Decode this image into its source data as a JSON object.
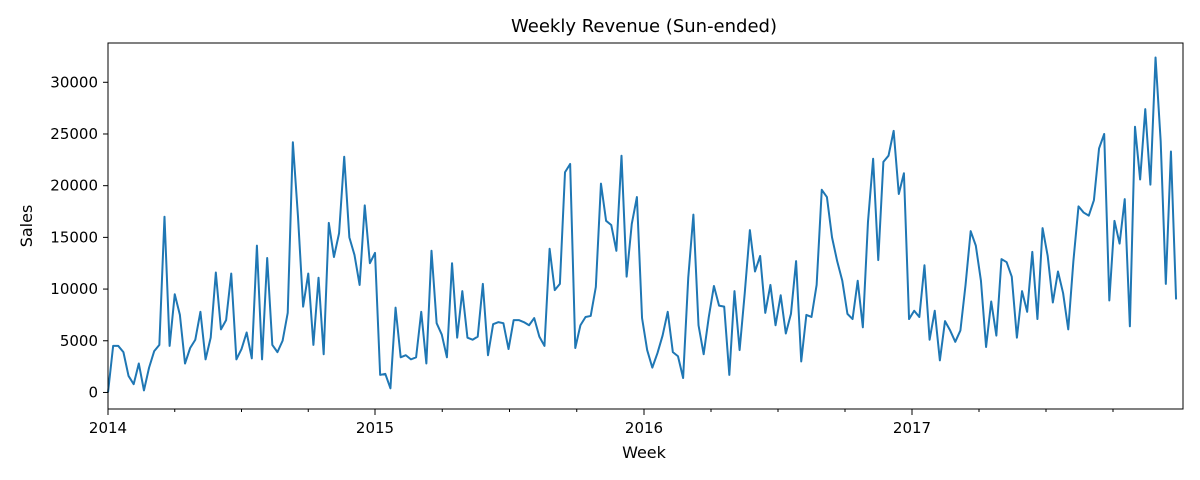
{
  "chart_data": {
    "type": "line",
    "title": "Weekly Revenue (Sun-ended)",
    "xlabel": "Week",
    "ylabel": "Sales",
    "x_ticks": [
      "2014",
      "2015",
      "2016",
      "2017"
    ],
    "y_ticks": [
      0,
      5000,
      10000,
      15000,
      20000,
      25000,
      30000
    ],
    "ylim": [
      -1600,
      33800
    ],
    "grid": false,
    "legend": "none",
    "series": [
      {
        "color": "#1f77b4",
        "values": [
          0,
          4500,
          4500,
          3900,
          1600,
          800,
          2800,
          200,
          2400,
          4000,
          4600,
          17000,
          4500,
          9500,
          7500,
          2800,
          4300,
          5100,
          7800,
          3200,
          5300,
          11600,
          6100,
          7000,
          11500,
          3200,
          4200,
          5800,
          3300,
          14200,
          3200,
          13000,
          4600,
          3900,
          5000,
          7700,
          24200,
          17000,
          8300,
          11500,
          4600,
          11100,
          3700,
          16400,
          13100,
          15400,
          22800,
          15000,
          13300,
          10400,
          18100,
          12500,
          13500,
          1700,
          1800,
          400,
          8200,
          3400,
          3600,
          3200,
          3400,
          7800,
          2800,
          13700,
          6700,
          5600,
          3400,
          12500,
          5300,
          9800,
          5300,
          5100,
          5400,
          10500,
          3600,
          6600,
          6800,
          6700,
          4200,
          7000,
          7000,
          6800,
          6500,
          7200,
          5400,
          4500,
          13900,
          9900,
          10500,
          21300,
          22100,
          4300,
          6500,
          7300,
          7400,
          10200,
          20200,
          16600,
          16200,
          13700,
          22900,
          11200,
          16300,
          18900,
          7200,
          4100,
          2400,
          3800,
          5500,
          7800,
          3900,
          3500,
          1400,
          11100,
          17200,
          6500,
          3700,
          7300,
          10300,
          8400,
          8300,
          1700,
          9800,
          4100,
          9600,
          15700,
          11700,
          13200,
          7700,
          10400,
          6500,
          9400,
          5700,
          7600,
          12700,
          3000,
          7500,
          7300,
          10400,
          19600,
          18900,
          15000,
          12700,
          10800,
          7600,
          7100,
          10800,
          6300,
          16500,
          22600,
          12800,
          22300,
          22900,
          25300,
          19200,
          21200,
          7100,
          7900,
          7300,
          12300,
          5100,
          7900,
          3100,
          6900,
          6000,
          4900,
          6000,
          10400,
          15600,
          14200,
          10800,
          4400,
          8800,
          5500,
          12900,
          12600,
          11200,
          5300,
          9800,
          7800,
          13600,
          7100,
          15900,
          13200,
          8700,
          11700,
          9600,
          6100,
          12700,
          18000,
          17400,
          17100,
          18600,
          23600,
          25000,
          8900,
          16600,
          14400,
          18700,
          6400,
          25700,
          20600,
          27400,
          20100,
          32400,
          24300,
          10500,
          23300,
          9000
        ]
      }
    ]
  }
}
